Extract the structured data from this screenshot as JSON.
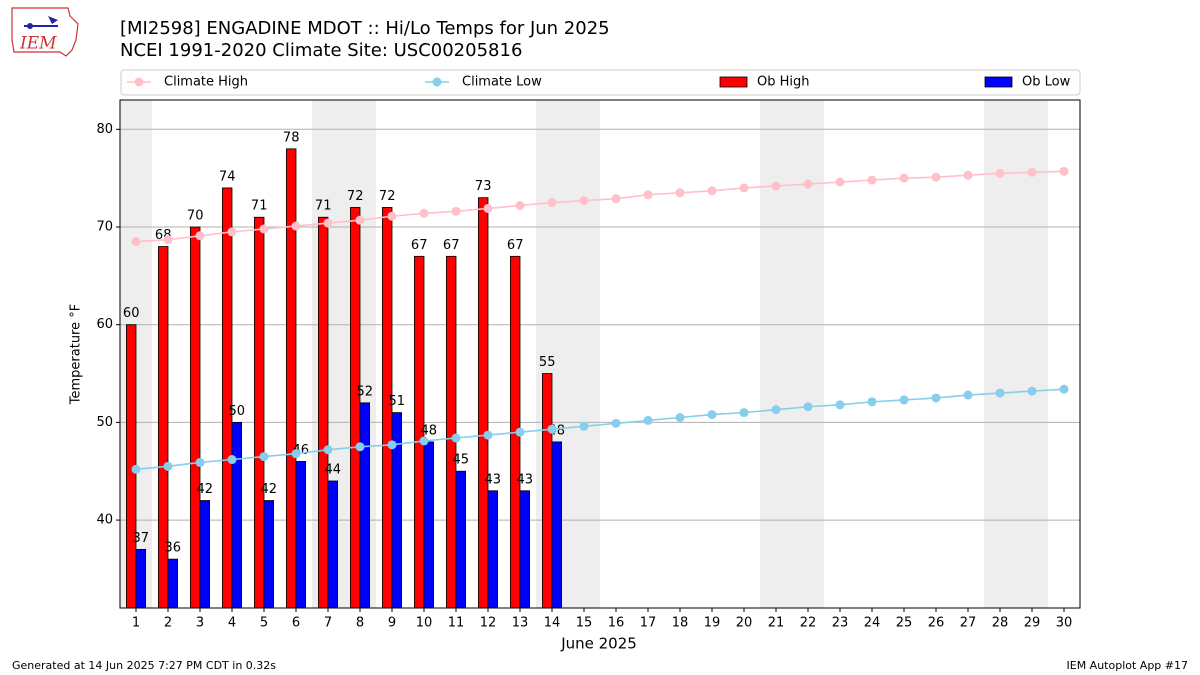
{
  "chart_data": {
    "type": "bar",
    "title": "[MI2598] ENGADINE MDOT :: Hi/Lo Temps for Jun 2025",
    "subtitle": "NCEI 1991-2020 Climate Site: USC00205816",
    "x_label": "June 2025",
    "y_label": "Temperature °F",
    "logo": "IEM",
    "footer_left": "Generated at 14 Jun 2025 7:27 PM CDT in 0.32s",
    "footer_right": "IEM Autoplot App #17",
    "x": [
      1,
      2,
      3,
      4,
      5,
      6,
      7,
      8,
      9,
      10,
      11,
      12,
      13,
      14,
      15,
      16,
      17,
      18,
      19,
      20,
      21,
      22,
      23,
      24,
      25,
      26,
      27,
      28,
      29,
      30
    ],
    "xlim": [
      0.5,
      30.5
    ],
    "xticks": [
      1,
      2,
      3,
      4,
      5,
      6,
      7,
      8,
      9,
      10,
      11,
      12,
      13,
      14,
      15,
      16,
      17,
      18,
      19,
      20,
      21,
      22,
      23,
      24,
      25,
      26,
      27,
      28,
      29,
      30
    ],
    "ylim": [
      31,
      83
    ],
    "yticks": [
      40,
      50,
      60,
      70,
      80
    ],
    "grid": true,
    "shaded_days": [
      1,
      7,
      8,
      14,
      15,
      21,
      22,
      28,
      29
    ],
    "series": [
      {
        "name": "Climate High",
        "type": "line",
        "color": "#ffc0cb",
        "values": [
          68.5,
          68.7,
          69.1,
          69.5,
          69.8,
          70.1,
          70.4,
          70.7,
          71.1,
          71.4,
          71.6,
          71.9,
          72.2,
          72.5,
          72.7,
          72.9,
          73.3,
          73.5,
          73.7,
          74.0,
          74.2,
          74.4,
          74.6,
          74.8,
          75.0,
          75.1,
          75.3,
          75.5,
          75.6,
          75.7
        ]
      },
      {
        "name": "Climate Low",
        "type": "line",
        "color": "#87ceeb",
        "values": [
          45.2,
          45.5,
          45.9,
          46.2,
          46.5,
          46.8,
          47.2,
          47.5,
          47.7,
          48.1,
          48.4,
          48.7,
          49.0,
          49.3,
          49.6,
          49.9,
          50.2,
          50.5,
          50.8,
          51.0,
          51.3,
          51.6,
          51.8,
          52.1,
          52.3,
          52.5,
          52.8,
          53.0,
          53.2,
          53.4
        ]
      },
      {
        "name": "Ob High",
        "type": "bar",
        "color": "#ff0000",
        "values": [
          60,
          68,
          70,
          74,
          71,
          78,
          71,
          72,
          72,
          67,
          67,
          73,
          67,
          55,
          null,
          null,
          null,
          null,
          null,
          null,
          null,
          null,
          null,
          null,
          null,
          null,
          null,
          null,
          null,
          null
        ]
      },
      {
        "name": "Ob Low",
        "type": "bar",
        "color": "#0000ff",
        "values": [
          37,
          36,
          42,
          50,
          42,
          46,
          44,
          52,
          51,
          48,
          45,
          43,
          43,
          48,
          null,
          null,
          null,
          null,
          null,
          null,
          null,
          null,
          null,
          null,
          null,
          null,
          null,
          null,
          null,
          null
        ]
      }
    ]
  }
}
